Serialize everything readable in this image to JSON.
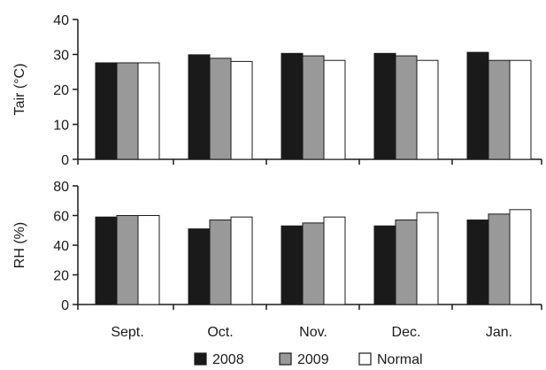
{
  "colors": {
    "2008": "#1a1a1a",
    "2009": "#999999",
    "Normal": "#ffffff",
    "stroke": "#1a1a1a"
  },
  "legend": {
    "placement": "bottom",
    "items": [
      "2008",
      "2009",
      "Normal"
    ]
  },
  "chart_data": [
    {
      "type": "bar",
      "categories": [
        "Sept.",
        "Oct.",
        "Nov.",
        "Dec.",
        "Jan."
      ],
      "ylabel": "Tair (°C)",
      "ylim": [
        0,
        40
      ],
      "yticks": [
        0,
        10,
        20,
        30,
        40
      ],
      "series": [
        {
          "name": "2008",
          "values": [
            27.6,
            29.9,
            30.3,
            30.3,
            30.6
          ]
        },
        {
          "name": "2009",
          "values": [
            27.6,
            28.9,
            29.6,
            29.6,
            28.3
          ]
        },
        {
          "name": "Normal",
          "values": [
            27.6,
            28.0,
            28.3,
            28.3,
            28.3
          ]
        }
      ]
    },
    {
      "type": "bar",
      "categories": [
        "Sept.",
        "Oct.",
        "Nov.",
        "Dec.",
        "Jan."
      ],
      "ylabel": "RH (%)",
      "ylim": [
        0,
        80
      ],
      "yticks": [
        0,
        20,
        40,
        60,
        80
      ],
      "series": [
        {
          "name": "2008",
          "values": [
            59,
            51,
            53,
            53,
            57
          ]
        },
        {
          "name": "2009",
          "values": [
            60,
            57,
            55,
            57,
            61
          ]
        },
        {
          "name": "Normal",
          "values": [
            60,
            59,
            59,
            62,
            64
          ]
        }
      ]
    }
  ]
}
